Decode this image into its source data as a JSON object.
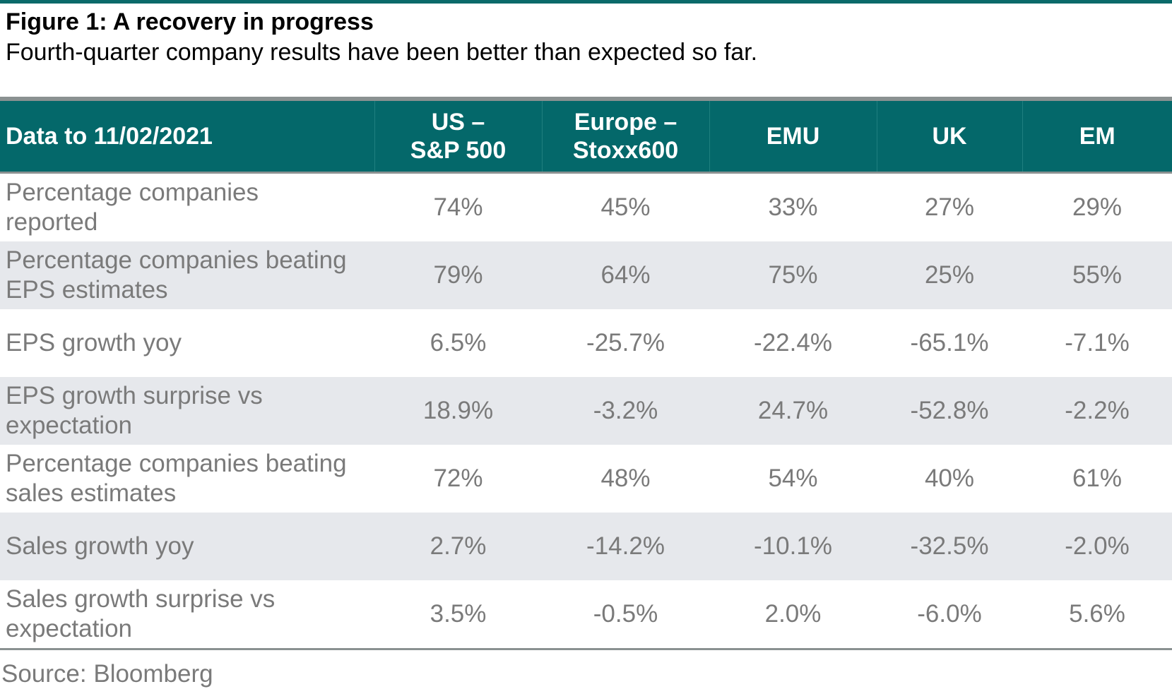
{
  "figure": {
    "title": "Figure 1: A recovery in progress",
    "subtitle": "Fourth-quarter company results have been better than expected so far."
  },
  "table": {
    "header": {
      "label": "Data to 11/02/2021",
      "columns": [
        "US –\nS&P 500",
        "Europe –\nStoxx600",
        "EMU",
        "UK",
        "EM"
      ]
    },
    "rows": [
      {
        "label": "Percentage companies\nreported",
        "values": [
          "74%",
          "45%",
          "33%",
          "27%",
          "29%"
        ]
      },
      {
        "label": "Percentage companies beating\nEPS estimates",
        "values": [
          "79%",
          "64%",
          "75%",
          "25%",
          "55%"
        ]
      },
      {
        "label": "EPS growth yoy",
        "values": [
          "6.5%",
          "-25.7%",
          "-22.4%",
          "-65.1%",
          "-7.1%"
        ]
      },
      {
        "label": "EPS growth surprise vs\nexpectation",
        "values": [
          "18.9%",
          "-3.2%",
          "24.7%",
          "-52.8%",
          "-2.2%"
        ]
      },
      {
        "label": "Percentage companies beating\nsales estimates",
        "values": [
          "72%",
          "48%",
          "54%",
          "40%",
          "61%"
        ]
      },
      {
        "label": "Sales growth yoy",
        "values": [
          "2.7%",
          "-14.2%",
          "-10.1%",
          "-32.5%",
          "-2.0%"
        ]
      },
      {
        "label": "Sales growth surprise vs\nexpectation",
        "values": [
          "3.5%",
          "-0.5%",
          "2.0%",
          "-6.0%",
          "5.6%"
        ]
      }
    ]
  },
  "source": "Source: Bloomberg",
  "colors": {
    "header_bg": "#04686a",
    "header_text": "#ffffff",
    "shaded_row_bg": "#e6e8ec",
    "body_text": "#7a7a7a",
    "rule": "#8a9191"
  }
}
